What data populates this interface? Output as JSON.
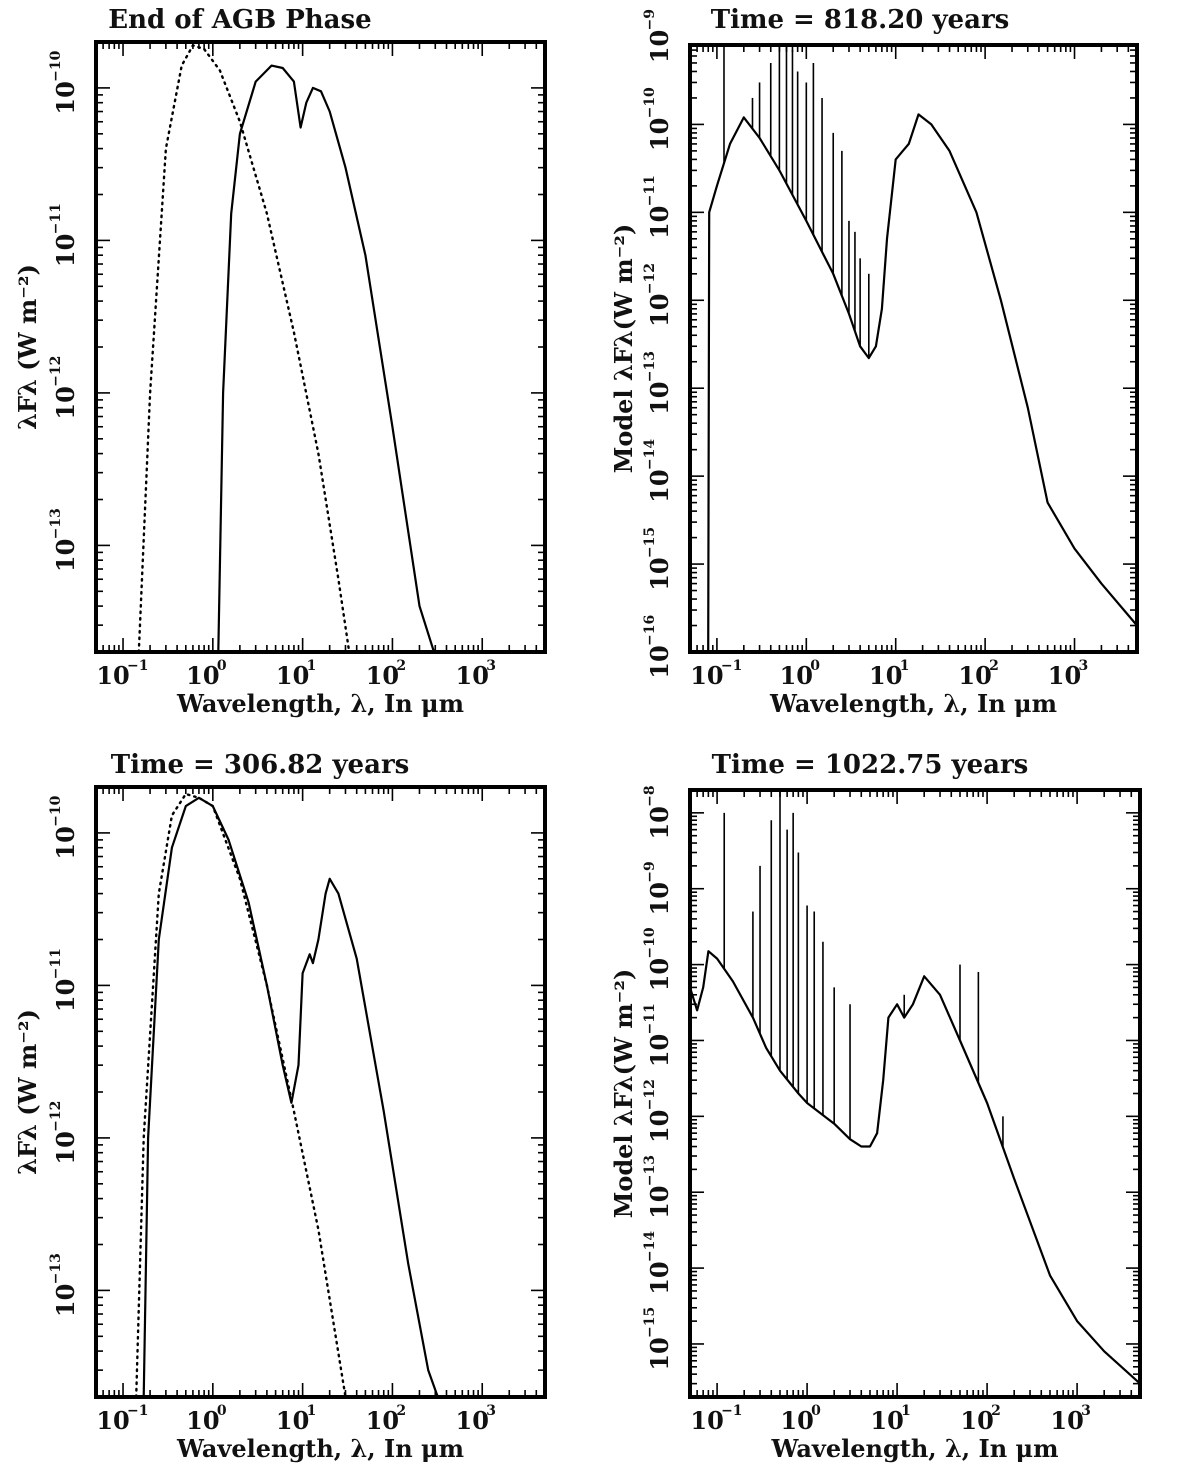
{
  "chart_data": [
    {
      "type": "line",
      "title": "End of AGB Phase",
      "xlabel": "Wavelength, λ, In μm",
      "ylabel": "λFλ (W m⁻²)",
      "xscale": "log",
      "yscale": "log",
      "xlim": [
        0.05,
        5000
      ],
      "ylim": [
        2e-14,
        2e-10
      ],
      "x_ticks": [
        "10⁻¹",
        "10⁰",
        "10¹",
        "10²",
        "10³"
      ],
      "y_ticks": [
        "10⁻¹³",
        "10⁻¹²",
        "10⁻¹¹",
        "10⁻¹⁰"
      ],
      "series": [
        {
          "style": "solid",
          "points": [
            [
              1.15,
              2e-14
            ],
            [
              1.3,
              1e-12
            ],
            [
              1.6,
              1.5e-11
            ],
            [
              2,
              5e-11
            ],
            [
              3,
              1.1e-10
            ],
            [
              4.5,
              1.4e-10
            ],
            [
              6,
              1.35e-10
            ],
            [
              8,
              1.1e-10
            ],
            [
              9.5,
              5.5e-11
            ],
            [
              11,
              8e-11
            ],
            [
              13,
              1e-10
            ],
            [
              16,
              9.5e-11
            ],
            [
              20,
              7e-11
            ],
            [
              30,
              3e-11
            ],
            [
              50,
              8e-12
            ],
            [
              100,
              6e-13
            ],
            [
              200,
              4e-14
            ],
            [
              290,
              2e-14
            ]
          ]
        },
        {
          "style": "dotted",
          "points": [
            [
              0.15,
              2e-14
            ],
            [
              0.2,
              1e-12
            ],
            [
              0.3,
              4e-11
            ],
            [
              0.45,
              1.4e-10
            ],
            [
              0.6,
              1.9e-10
            ],
            [
              0.8,
              1.8e-10
            ],
            [
              1.2,
              1.3e-10
            ],
            [
              2,
              6e-11
            ],
            [
              4,
              1.5e-11
            ],
            [
              8,
              2.5e-12
            ],
            [
              15,
              4e-13
            ],
            [
              25,
              6e-14
            ],
            [
              33,
              2e-14
            ]
          ]
        }
      ]
    },
    {
      "type": "line",
      "title": "Time =  818.20  years",
      "xlabel": "Wavelength, λ, In μm",
      "ylabel": "Model λFλ(W m⁻²)",
      "xscale": "log",
      "yscale": "log",
      "xlim": [
        0.05,
        5000
      ],
      "ylim": [
        1e-16,
        8e-10
      ],
      "x_ticks": [
        "10⁻¹",
        "10⁰",
        "10¹",
        "10²",
        "10³"
      ],
      "y_ticks": [
        "10⁻¹⁶",
        "10⁻¹⁵",
        "10⁻¹⁴",
        "10⁻¹³",
        "10⁻¹²",
        "10⁻¹¹",
        "10⁻¹⁰",
        "10⁻⁹"
      ],
      "series": [
        {
          "style": "solid",
          "points": [
            [
              0.08,
              1e-16
            ],
            [
              0.082,
              1e-11
            ],
            [
              0.1,
              2e-11
            ],
            [
              0.14,
              6e-11
            ],
            [
              0.2,
              1.2e-10
            ],
            [
              0.3,
              7e-11
            ],
            [
              0.5,
              3e-11
            ],
            [
              1,
              8e-12
            ],
            [
              2,
              2e-12
            ],
            [
              3,
              7e-13
            ],
            [
              4,
              3e-13
            ],
            [
              5,
              2.2e-13
            ],
            [
              6,
              3e-13
            ],
            [
              7,
              8e-13
            ],
            [
              8,
              5e-12
            ],
            [
              10,
              4e-11
            ],
            [
              12,
              5e-11
            ],
            [
              14,
              6e-11
            ],
            [
              18,
              1.3e-10
            ],
            [
              25,
              1e-10
            ],
            [
              40,
              5e-11
            ],
            [
              80,
              1e-11
            ],
            [
              150,
              1e-12
            ],
            [
              300,
              6e-14
            ],
            [
              500,
              5e-15
            ],
            [
              1000,
              1.5e-15
            ],
            [
              2000,
              6e-16
            ],
            [
              5000,
              2e-16
            ]
          ]
        }
      ],
      "spikes": [
        [
          0.12,
          1e-09
        ],
        [
          0.25,
          2e-10
        ],
        [
          0.3,
          3e-10
        ],
        [
          0.4,
          5e-10
        ],
        [
          0.5,
          2e-09
        ],
        [
          0.6,
          8e-10
        ],
        [
          0.7,
          7e-10
        ],
        [
          0.8,
          4e-10
        ],
        [
          1,
          3e-10
        ],
        [
          1.2,
          5e-10
        ],
        [
          1.5,
          2e-10
        ],
        [
          2,
          8e-11
        ],
        [
          2.5,
          5e-11
        ],
        [
          3,
          8e-12
        ],
        [
          3.5,
          6e-12
        ],
        [
          4,
          3e-12
        ],
        [
          5,
          2e-12
        ]
      ]
    },
    {
      "type": "line",
      "title": "Time = 306.82  years",
      "xlabel": "Wavelength, λ, In μm",
      "ylabel": "λFλ (W m⁻²)",
      "xscale": "log",
      "yscale": "log",
      "xlim": [
        0.05,
        5000
      ],
      "ylim": [
        2e-14,
        2e-10
      ],
      "x_ticks": [
        "10⁻¹",
        "10⁰",
        "10¹",
        "10²",
        "10³"
      ],
      "y_ticks": [
        "10⁻¹³",
        "10⁻¹²",
        "10⁻¹¹",
        "10⁻¹⁰"
      ],
      "series": [
        {
          "style": "solid",
          "points": [
            [
              0.17,
              2e-14
            ],
            [
              0.19,
              1e-12
            ],
            [
              0.25,
              2e-11
            ],
            [
              0.35,
              8e-11
            ],
            [
              0.5,
              1.5e-10
            ],
            [
              0.7,
              1.7e-10
            ],
            [
              1,
              1.5e-10
            ],
            [
              1.5,
              9e-11
            ],
            [
              2.5,
              3.5e-11
            ],
            [
              4,
              1e-11
            ],
            [
              6,
              3e-12
            ],
            [
              7.5,
              1.7e-12
            ],
            [
              9,
              3e-12
            ],
            [
              10,
              1.2e-11
            ],
            [
              12,
              1.6e-11
            ],
            [
              13,
              1.4e-11
            ],
            [
              15,
              2e-11
            ],
            [
              18,
              4e-11
            ],
            [
              20,
              5e-11
            ],
            [
              25,
              4e-11
            ],
            [
              40,
              1.5e-11
            ],
            [
              80,
              1.5e-12
            ],
            [
              150,
              1.5e-13
            ],
            [
              250,
              3e-14
            ],
            [
              320,
              2e-14
            ]
          ]
        },
        {
          "style": "dotted",
          "points": [
            [
              0.14,
              2e-14
            ],
            [
              0.17,
              1e-12
            ],
            [
              0.25,
              4e-11
            ],
            [
              0.35,
              1.3e-10
            ],
            [
              0.5,
              1.8e-10
            ],
            [
              0.7,
              1.7e-10
            ],
            [
              1,
              1.5e-10
            ],
            [
              2,
              5e-11
            ],
            [
              4,
              1e-11
            ],
            [
              8,
              1.5e-12
            ],
            [
              15,
              2.5e-13
            ],
            [
              30,
              2e-14
            ]
          ]
        }
      ]
    },
    {
      "type": "line",
      "title": "Time =  1022.75  years",
      "xlabel": "Wavelength, λ, In μm",
      "ylabel": "Model λFλ(W m⁻²)",
      "xscale": "log",
      "yscale": "log",
      "xlim": [
        0.05,
        5000
      ],
      "ylim": [
        2e-16,
        2e-08
      ],
      "x_ticks": [
        "10⁻¹",
        "10⁰",
        "10¹",
        "10²",
        "10³"
      ],
      "y_ticks": [
        "10⁻¹⁵",
        "10⁻¹⁴",
        "10⁻¹³",
        "10⁻¹²",
        "10⁻¹¹",
        "10⁻¹⁰",
        "10⁻⁹",
        "10⁻⁸"
      ],
      "series": [
        {
          "style": "solid",
          "points": [
            [
              0.05,
              5e-11
            ],
            [
              0.06,
              2.5e-11
            ],
            [
              0.07,
              5e-11
            ],
            [
              0.08,
              1.5e-10
            ],
            [
              0.1,
              1.2e-10
            ],
            [
              0.15,
              6e-11
            ],
            [
              0.25,
              2e-11
            ],
            [
              0.35,
              8e-12
            ],
            [
              0.5,
              4e-12
            ],
            [
              0.8,
              2e-12
            ],
            [
              1,
              1.5e-12
            ],
            [
              2,
              8e-13
            ],
            [
              3,
              5e-13
            ],
            [
              4,
              4e-13
            ],
            [
              5,
              4e-13
            ],
            [
              6,
              6e-13
            ],
            [
              7,
              3e-12
            ],
            [
              8,
              2e-11
            ],
            [
              10,
              3e-11
            ],
            [
              12,
              2e-11
            ],
            [
              15,
              3e-11
            ],
            [
              20,
              7e-11
            ],
            [
              30,
              4e-11
            ],
            [
              50,
              1e-11
            ],
            [
              100,
              1.5e-12
            ],
            [
              200,
              1.5e-13
            ],
            [
              500,
              8e-15
            ],
            [
              1000,
              2e-15
            ],
            [
              2000,
              8e-16
            ],
            [
              5000,
              3e-16
            ]
          ]
        }
      ],
      "spikes": [
        [
          0.12,
          1e-08
        ],
        [
          0.25,
          5e-10
        ],
        [
          0.3,
          2e-09
        ],
        [
          0.4,
          8e-09
        ],
        [
          0.5,
          2e-08
        ],
        [
          0.6,
          6e-09
        ],
        [
          0.7,
          1e-08
        ],
        [
          0.8,
          3e-09
        ],
        [
          1,
          6e-10
        ],
        [
          1.2,
          5e-10
        ],
        [
          1.5,
          2e-10
        ],
        [
          2,
          5e-11
        ],
        [
          3,
          3e-11
        ],
        [
          12,
          4e-11
        ],
        [
          50,
          1e-10
        ],
        [
          80,
          8e-11
        ],
        [
          150,
          1e-12
        ]
      ]
    }
  ]
}
